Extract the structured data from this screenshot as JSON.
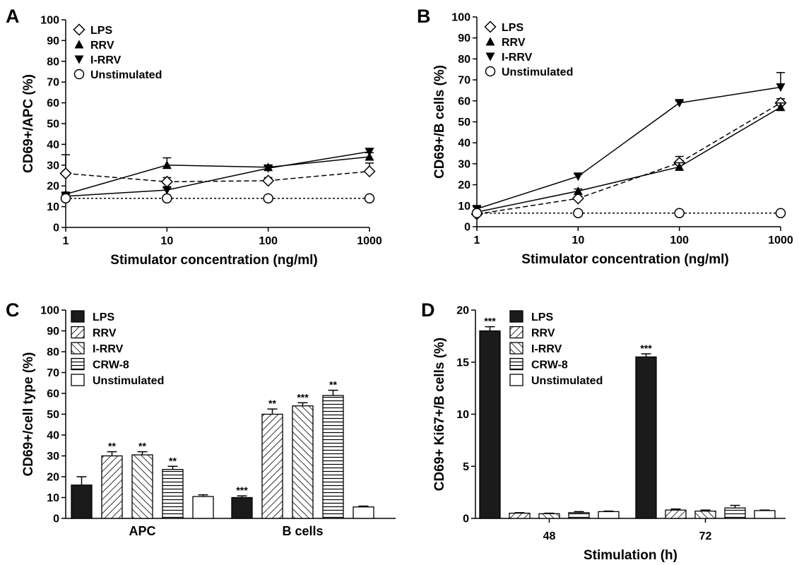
{
  "chart_data": [
    {
      "panel": "A",
      "type": "line",
      "xscale": "log",
      "x": [
        1,
        10,
        100,
        1000
      ],
      "xticks": [
        "1",
        "10",
        "100",
        "1000"
      ],
      "xlabel": "Stimulator concentration (ng/ml)",
      "ylabel": "CD69+/APC (%)",
      "ylim": [
        0,
        100
      ],
      "yticks": [
        "0",
        "10",
        "20",
        "30",
        "40",
        "50",
        "60",
        "70",
        "80",
        "90",
        "100"
      ],
      "legend_position": "top-left",
      "series": [
        {
          "name": "LPS",
          "marker": "diamond-open",
          "line": "dashed",
          "values": [
            26,
            22,
            22.5,
            27
          ],
          "errors": [
            9,
            2,
            1.5,
            4
          ]
        },
        {
          "name": "RRV",
          "marker": "triangle-up-filled",
          "line": "solid",
          "values": [
            16,
            30,
            29,
            34
          ],
          "errors": [
            1,
            3.5,
            1,
            2
          ]
        },
        {
          "name": "I-RRV",
          "marker": "triangle-down-filled",
          "line": "solid",
          "values": [
            15,
            18,
            28.5,
            36.5
          ],
          "errors": [
            1,
            1,
            1,
            1.5
          ]
        },
        {
          "name": "Unstimulated",
          "marker": "circle-open",
          "line": "dotted",
          "values": [
            14,
            14,
            14,
            14
          ],
          "errors": [
            0,
            0,
            0,
            0
          ]
        }
      ]
    },
    {
      "panel": "B",
      "type": "line",
      "xscale": "log",
      "x": [
        1,
        10,
        100,
        1000
      ],
      "xticks": [
        "1",
        "10",
        "100",
        "1000"
      ],
      "xlabel": "Stimulator concentration (ng/ml)",
      "ylabel": "CD69+/B cells (%)",
      "ylim": [
        0,
        100
      ],
      "yticks": [
        "0",
        "10",
        "20",
        "30",
        "40",
        "50",
        "60",
        "70",
        "80",
        "90",
        "100"
      ],
      "legend_position": "top-left",
      "series": [
        {
          "name": "LPS",
          "marker": "diamond-open",
          "line": "dashed",
          "values": [
            6,
            13.5,
            30.5,
            59
          ],
          "errors": [
            1,
            1,
            3,
            2
          ]
        },
        {
          "name": "RRV",
          "marker": "triangle-up-filled",
          "line": "solid",
          "values": [
            7,
            17,
            28.5,
            57
          ],
          "errors": [
            1,
            1,
            2,
            2
          ]
        },
        {
          "name": "I-RRV",
          "marker": "triangle-down-filled",
          "line": "solid",
          "values": [
            8.5,
            24,
            59,
            66.5
          ],
          "errors": [
            1,
            1,
            1,
            7
          ]
        },
        {
          "name": "Unstimulated",
          "marker": "circle-open",
          "line": "dotted",
          "values": [
            6.5,
            6.5,
            6.5,
            6.5
          ],
          "errors": [
            0,
            0,
            0,
            0
          ]
        }
      ]
    },
    {
      "panel": "C",
      "type": "bar",
      "categories": [
        "APC",
        "B cells"
      ],
      "ylabel": "CD69+/cell type (%)",
      "xlabel": "",
      "ylim": [
        0,
        100
      ],
      "yticks": [
        "0",
        "10",
        "20",
        "30",
        "40",
        "50",
        "60",
        "70",
        "80",
        "90",
        "100"
      ],
      "legend_position": "top-left",
      "series": [
        {
          "name": "LPS",
          "pattern": "solid",
          "values": [
            16,
            10
          ],
          "errors": [
            4,
            0.8
          ],
          "sig": [
            "",
            "***"
          ]
        },
        {
          "name": "RRV",
          "pattern": "diag-right",
          "values": [
            30,
            50
          ],
          "errors": [
            2,
            2.5
          ],
          "sig": [
            "**",
            "**"
          ]
        },
        {
          "name": "I-RRV",
          "pattern": "diag-left",
          "values": [
            30.5,
            54
          ],
          "errors": [
            1.5,
            1.5
          ],
          "sig": [
            "**",
            "***"
          ]
        },
        {
          "name": "CRW-8",
          "pattern": "horizontal",
          "values": [
            23.5,
            59
          ],
          "errors": [
            1.5,
            2.5
          ],
          "sig": [
            "**",
            "**"
          ]
        },
        {
          "name": "Unstimulated",
          "pattern": "open",
          "values": [
            10.5,
            5.5
          ],
          "errors": [
            0.8,
            0.4
          ],
          "sig": [
            "",
            ""
          ]
        }
      ]
    },
    {
      "panel": "D",
      "type": "bar",
      "categories": [
        "48",
        "72"
      ],
      "xlabel": "Stimulation (h)",
      "ylabel": "CD69+ Ki67+/B cells (%)",
      "ylim": [
        0,
        20
      ],
      "yticks": [
        "0",
        "5",
        "10",
        "15",
        "20"
      ],
      "legend_position": "top-left",
      "series": [
        {
          "name": "LPS",
          "pattern": "solid",
          "values": [
            18,
            15.5
          ],
          "errors": [
            0.4,
            0.3
          ],
          "sig": [
            "***",
            "***"
          ]
        },
        {
          "name": "RRV",
          "pattern": "diag-right",
          "values": [
            0.5,
            0.8
          ],
          "errors": [
            0.05,
            0.1
          ],
          "sig": [
            "",
            ""
          ]
        },
        {
          "name": "I-RRV",
          "pattern": "diag-left",
          "values": [
            0.45,
            0.7
          ],
          "errors": [
            0.05,
            0.1
          ],
          "sig": [
            "",
            ""
          ]
        },
        {
          "name": "CRW-8",
          "pattern": "horizontal",
          "values": [
            0.55,
            1.0
          ],
          "errors": [
            0.1,
            0.25
          ],
          "sig": [
            "",
            ""
          ]
        },
        {
          "name": "Unstimulated",
          "pattern": "open",
          "values": [
            0.65,
            0.75
          ],
          "errors": [
            0.05,
            0.05
          ],
          "sig": [
            "",
            ""
          ]
        }
      ]
    }
  ]
}
